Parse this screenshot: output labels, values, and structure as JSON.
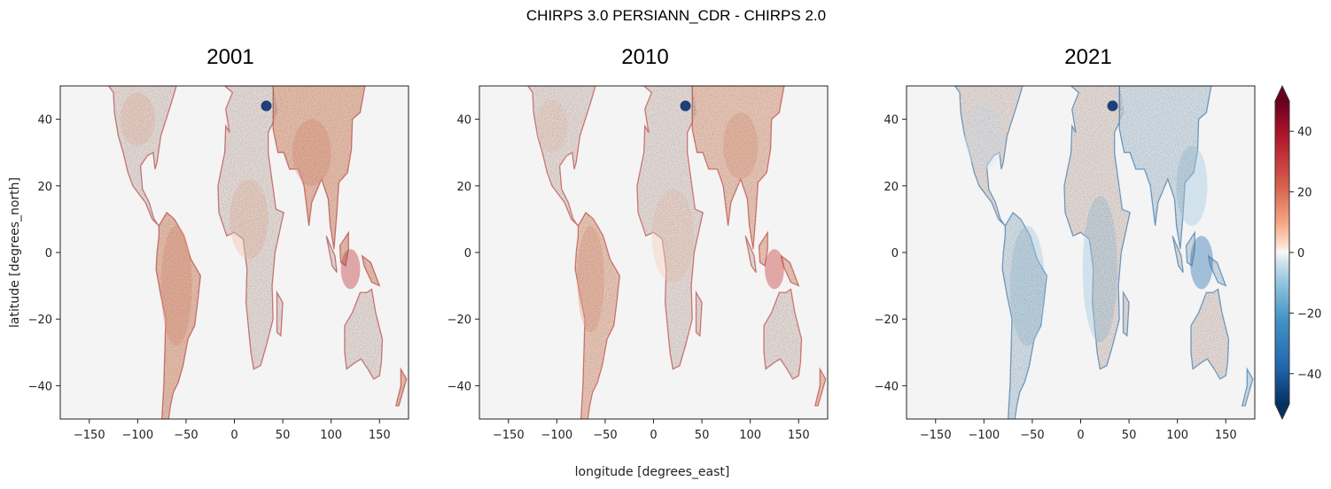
{
  "figure": {
    "suptitle": "CHIRPS 3.0 PERSIANN_CDR - CHIRPS 2.0",
    "xlabel": "longitude [degrees_east]",
    "ylabel": "latitude [degrees_north]"
  },
  "panels": [
    {
      "title": "2001"
    },
    {
      "title": "2010"
    },
    {
      "title": "2021"
    }
  ],
  "colorbar": {
    "ticks": [
      "40",
      "20",
      "0",
      "−20",
      "−40"
    ],
    "colormap": "RdBu_r",
    "extend": "both"
  },
  "chart_data": {
    "type": "heatmap",
    "title": "CHIRPS 3.0 PERSIANN_CDR - CHIRPS 2.0",
    "xlabel": "longitude [degrees_east]",
    "ylabel": "latitude [degrees_north]",
    "xlim": [
      -180,
      180
    ],
    "ylim": [
      -50,
      50
    ],
    "x_ticks": [
      "−150",
      "−100",
      "−50",
      "0",
      "50",
      "100",
      "150"
    ],
    "y_ticks": [
      "40",
      "20",
      "0",
      "−20",
      "−40"
    ],
    "vrange": [
      -50,
      50
    ],
    "colorbar_ticks": [
      40,
      20,
      0,
      -20,
      -40
    ],
    "panels": [
      "2001",
      "2010",
      "2021"
    ],
    "colors": {
      "positive": "#67001f",
      "neutral": "#f5f5f5",
      "negative": "#053061",
      "ocean": "#f4f4f4"
    }
  }
}
